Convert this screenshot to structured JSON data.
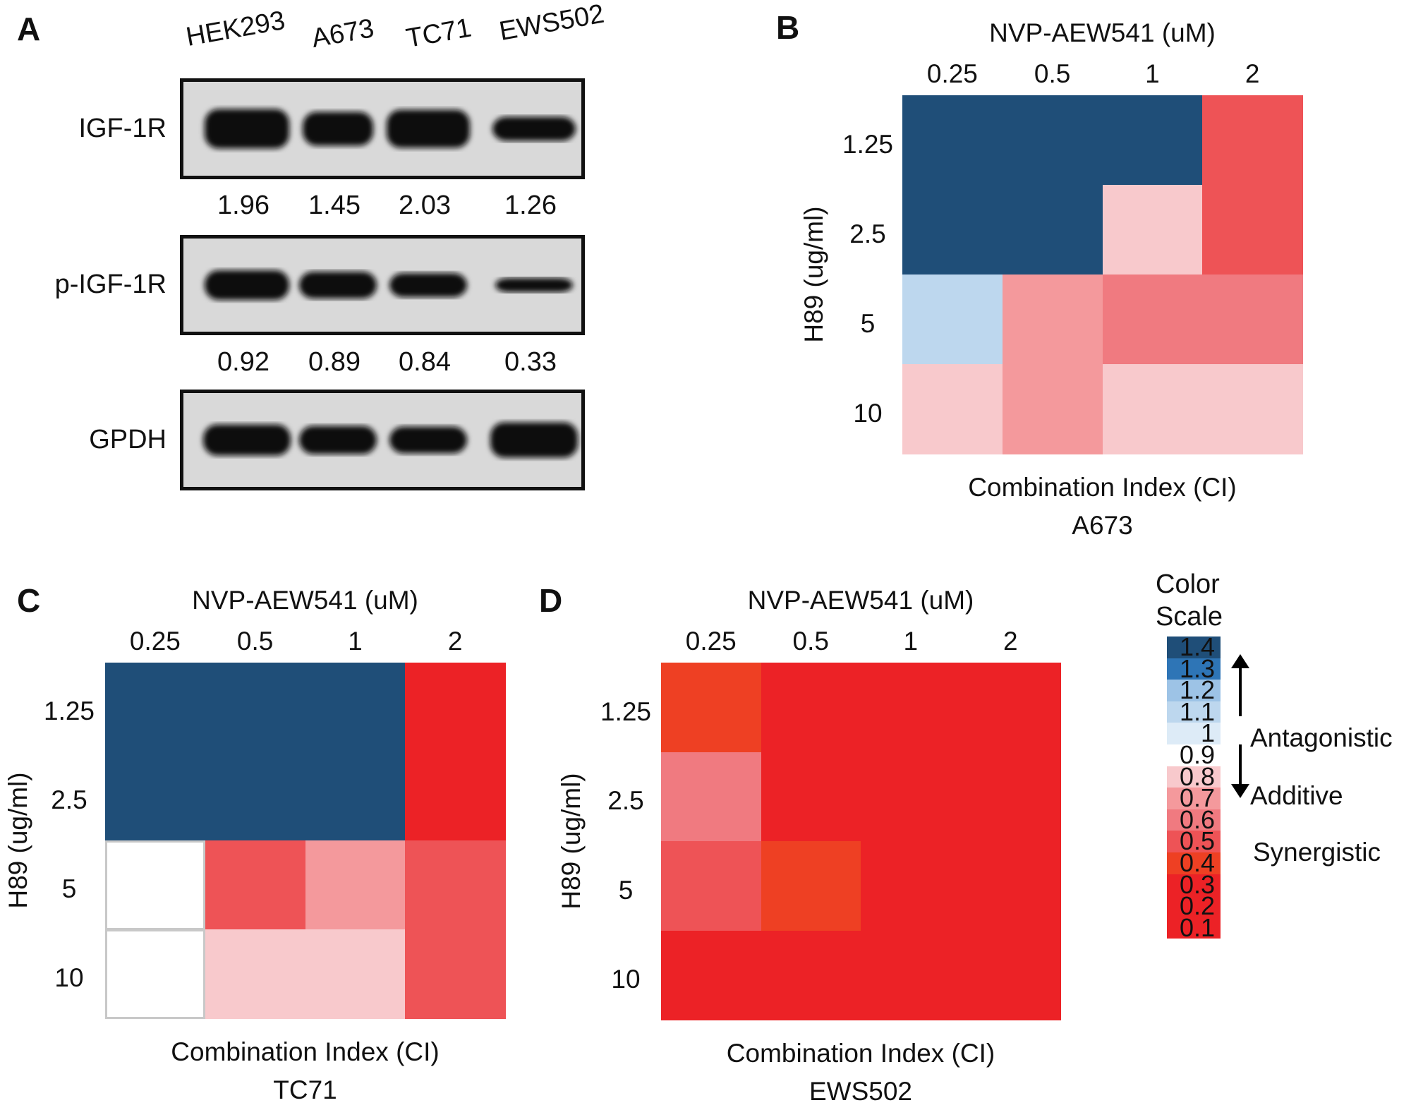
{
  "panel_a": {
    "letter": "A",
    "lanes": [
      "HEK293",
      "A673",
      "TC71",
      "EWS502"
    ],
    "blots": [
      {
        "label": "IGF-1R",
        "values": [
          "1.96",
          "1.45",
          "2.03",
          "1.26"
        ]
      },
      {
        "label": "p-IGF-1R",
        "values": [
          "0.92",
          "0.89",
          "0.84",
          "0.33"
        ]
      },
      {
        "label": "GPDH",
        "values": []
      }
    ]
  },
  "chart_data": [
    {
      "type": "heatmap",
      "panel": "B",
      "title": "NVP-AEW541 (uM)",
      "xlabel": "NVP-AEW541 (uM)",
      "ylabel": "H89 (ug/ml)",
      "x": [
        "0.25",
        "0.5",
        "1",
        "2"
      ],
      "y": [
        "1.25",
        "2.5",
        "5",
        "10"
      ],
      "caption": [
        "Combination Index (CI)",
        "A673"
      ],
      "values": [
        [
          1.4,
          1.4,
          1.4,
          0.5
        ],
        [
          1.4,
          1.4,
          0.8,
          0.5
        ],
        [
          1.1,
          0.7,
          0.6,
          0.6
        ],
        [
          0.8,
          0.7,
          0.8,
          0.8
        ]
      ]
    },
    {
      "type": "heatmap",
      "panel": "C",
      "title": "NVP-AEW541 (uM)",
      "xlabel": "NVP-AEW541 (uM)",
      "ylabel": "H89 (ug/ml)",
      "x": [
        "0.25",
        "0.5",
        "1",
        "2"
      ],
      "y": [
        "1.25",
        "2.5",
        "5",
        "10"
      ],
      "caption": [
        "Combination Index (CI)",
        "TC71"
      ],
      "values": [
        [
          1.4,
          1.4,
          1.4,
          0.3
        ],
        [
          1.4,
          1.4,
          1.4,
          0.3
        ],
        [
          0.9,
          0.5,
          0.7,
          0.5
        ],
        [
          0.9,
          0.8,
          0.8,
          0.5
        ]
      ]
    },
    {
      "type": "heatmap",
      "panel": "D",
      "title": "NVP-AEW541 (uM)",
      "xlabel": "NVP-AEW541 (uM)",
      "ylabel": "H89 (ug/ml)",
      "x": [
        "0.25",
        "0.5",
        "1",
        "2"
      ],
      "y": [
        "1.25",
        "2.5",
        "5",
        "10"
      ],
      "caption": [
        "Combination Index (CI)",
        "EWS502"
      ],
      "values": [
        [
          0.4,
          0.3,
          0.3,
          0.3
        ],
        [
          0.6,
          0.3,
          0.3,
          0.3
        ],
        [
          0.5,
          0.4,
          0.3,
          0.3
        ],
        [
          0.3,
          0.3,
          0.3,
          0.3
        ]
      ]
    }
  ],
  "color_scale": {
    "title_line1": "Color",
    "title_line2": "Scale",
    "levels": [
      {
        "value": "1.4",
        "color": "#1f4e78"
      },
      {
        "value": "1.3",
        "color": "#2e75b6"
      },
      {
        "value": "1.2",
        "color": "#9dc3e6"
      },
      {
        "value": "1.1",
        "color": "#bdd7ee"
      },
      {
        "value": "1",
        "color": "#ddebf7"
      },
      {
        "value": "0.9",
        "color": "#ffffff"
      },
      {
        "value": "0.8",
        "color": "#f8c9cc"
      },
      {
        "value": "0.7",
        "color": "#f4999c"
      },
      {
        "value": "0.6",
        "color": "#f07a80"
      },
      {
        "value": "0.5",
        "color": "#ee5356"
      },
      {
        "value": "0.4",
        "color": "#ee4023"
      },
      {
        "value": "0.3",
        "color": "#ec2226"
      },
      {
        "value": "0.2",
        "color": "#ec2226"
      },
      {
        "value": "0.1",
        "color": "#ec2226"
      }
    ],
    "antagonistic": "Antagonistic",
    "additive": "Additive",
    "synergistic": "Synergistic"
  }
}
